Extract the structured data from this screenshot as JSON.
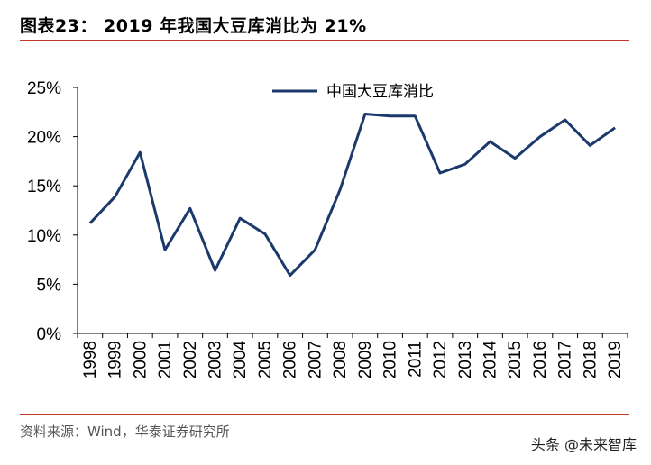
{
  "header": {
    "figure_title": "图表23： 2019 年我国大豆库消比为 21%"
  },
  "footer": {
    "source": "资料来源：Wind，华泰证券研究所",
    "watermark": "头条 @未来智库"
  },
  "colors": {
    "series": "#1b3a6b",
    "rule": "#c0392b"
  },
  "chart_data": {
    "type": "line",
    "categories": [
      "1998",
      "1999",
      "2000",
      "2001",
      "2002",
      "2003",
      "2004",
      "2005",
      "2006",
      "2007",
      "2008",
      "2009",
      "2010",
      "2011",
      "2012",
      "2013",
      "2014",
      "2015",
      "2016",
      "2017",
      "2018",
      "2019"
    ],
    "series": [
      {
        "name": "中国大豆库消比",
        "values": [
          11.2,
          13.9,
          18.4,
          8.5,
          12.7,
          6.4,
          11.7,
          10.1,
          5.9,
          8.5,
          14.6,
          22.3,
          22.1,
          22.1,
          16.3,
          17.2,
          19.5,
          17.8,
          20.0,
          21.7,
          19.1,
          20.9
        ]
      }
    ],
    "y_ticks": [
      "0%",
      "5%",
      "10%",
      "15%",
      "20%",
      "25%"
    ],
    "ylim": [
      0,
      25
    ],
    "legend": "top-center",
    "grid": false
  }
}
